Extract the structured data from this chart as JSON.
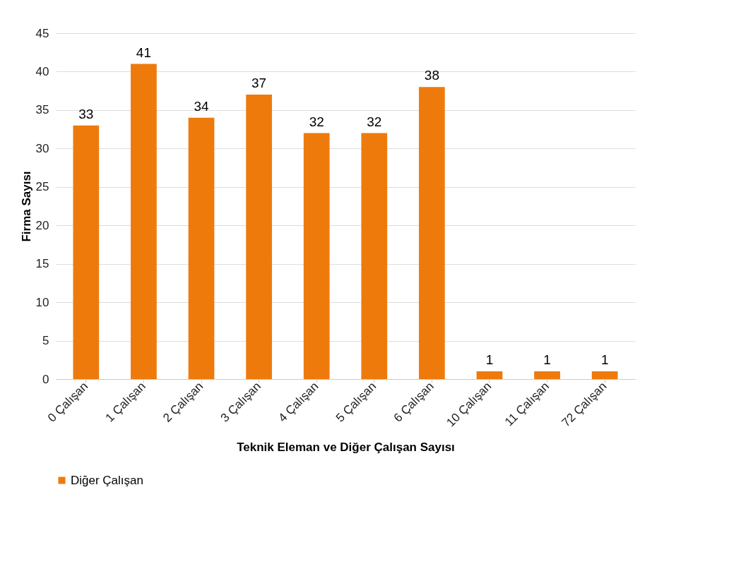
{
  "chart_data": {
    "type": "bar",
    "xlabel": "Teknik Eleman ve Diğer Çalışan Sayısı",
    "ylabel": "Firma Sayısı",
    "categories": [
      "0 Çalışan",
      "1 Çalışan",
      "2 Çalışan",
      "3 Çalışan",
      "4 Çalışan",
      "5 Çalışan",
      "6 Çalışan",
      "10 Çalışan",
      "11 Çalışan",
      "72 Çalışan"
    ],
    "series": [
      {
        "name": "Diğer Çalışan",
        "color": "#ee7a0c",
        "values": [
          33,
          41,
          34,
          37,
          32,
          32,
          38,
          1,
          1,
          1
        ]
      }
    ],
    "ylim": [
      0,
      45
    ],
    "yticks": [
      0,
      5,
      10,
      15,
      20,
      25,
      30,
      35,
      40,
      45
    ],
    "grid": "y",
    "legend": "bottom",
    "data_labels": true
  }
}
